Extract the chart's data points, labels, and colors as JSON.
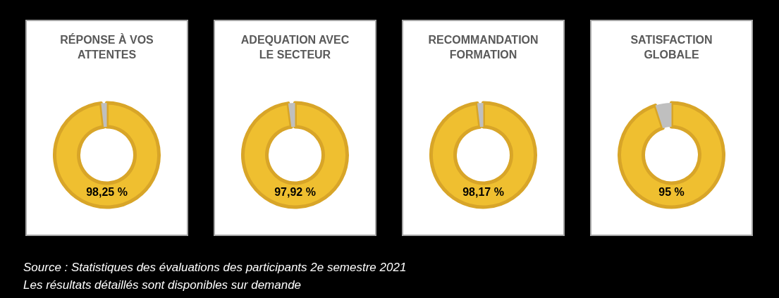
{
  "chart_data": [
    {
      "type": "donut",
      "title": "RÉPONSE À VOS ATTENTES",
      "categories": [
        null,
        null
      ],
      "values": [
        98.25,
        1.75
      ],
      "colors": [
        "#efbf30",
        "#bfbfbf"
      ],
      "value_labels": [
        "98,25 %",
        null
      ]
    },
    {
      "type": "donut",
      "title": "ADEQUATION AVEC LE SECTEUR",
      "categories": [
        null,
        null
      ],
      "values": [
        97.92,
        2.08
      ],
      "colors": [
        "#efbf30",
        "#bfbfbf"
      ],
      "value_labels": [
        "97,92 %",
        null
      ]
    },
    {
      "type": "donut",
      "title": "RECOMMANDATION FORMATION",
      "categories": [
        null,
        null
      ],
      "values": [
        98.17,
        1.83
      ],
      "colors": [
        "#efbf30",
        "#bfbfbf"
      ],
      "value_labels": [
        "98,17 %",
        null
      ]
    },
    {
      "type": "donut",
      "title": "SATISFACTION GLOBALE",
      "categories": [
        null,
        null
      ],
      "values": [
        95,
        5
      ],
      "colors": [
        "#efbf30",
        "#bfbfbf"
      ],
      "value_labels": [
        "95 %",
        null
      ]
    },
    {
      "type": "other",
      "annotations": [
        "Source : Statistiques des évaluations des participants 2e semestre 2021",
        "Les résultats détaillés sont disponibles sur demande"
      ]
    }
  ]
}
